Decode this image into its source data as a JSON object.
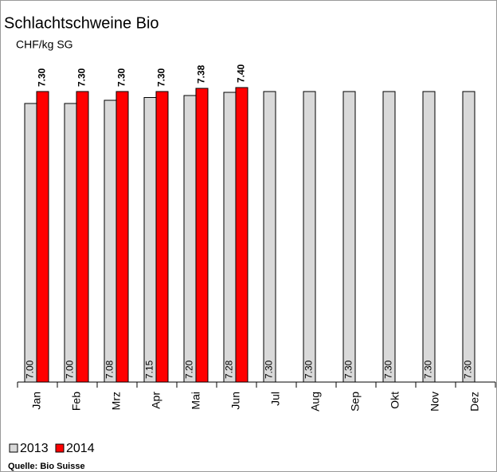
{
  "chart_data": {
    "type": "bar",
    "title": "Schlachtschweine Bio",
    "subtitle": "CHF/kg SG",
    "source": "Quelle: Bio Suisse",
    "categories": [
      "Jan",
      "Feb",
      "Mrz",
      "Apr",
      "Mai",
      "Jun",
      "Jul",
      "Aug",
      "Sep",
      "Okt",
      "Nov",
      "Dez"
    ],
    "series": [
      {
        "name": "2013",
        "color": "#d9d9d9",
        "values": [
          7.0,
          7.0,
          7.08,
          7.15,
          7.2,
          7.28,
          7.3,
          7.3,
          7.3,
          7.3,
          7.3,
          7.3
        ],
        "value_labels": [
          "7.00",
          "7.00",
          "7.08",
          "7.15",
          "7.20",
          "7.28",
          "7.30",
          "7.30",
          "7.30",
          "7.30",
          "7.30",
          "7.30"
        ]
      },
      {
        "name": "2014",
        "color": "#ff0000",
        "values": [
          7.3,
          7.3,
          7.3,
          7.3,
          7.38,
          7.4,
          null,
          null,
          null,
          null,
          null,
          null
        ],
        "value_labels": [
          "7.30",
          "7.30",
          "7.30",
          "7.30",
          "7.38",
          "7.40",
          null,
          null,
          null,
          null,
          null,
          null
        ]
      }
    ],
    "ylim": [
      0,
      8.64
    ]
  }
}
